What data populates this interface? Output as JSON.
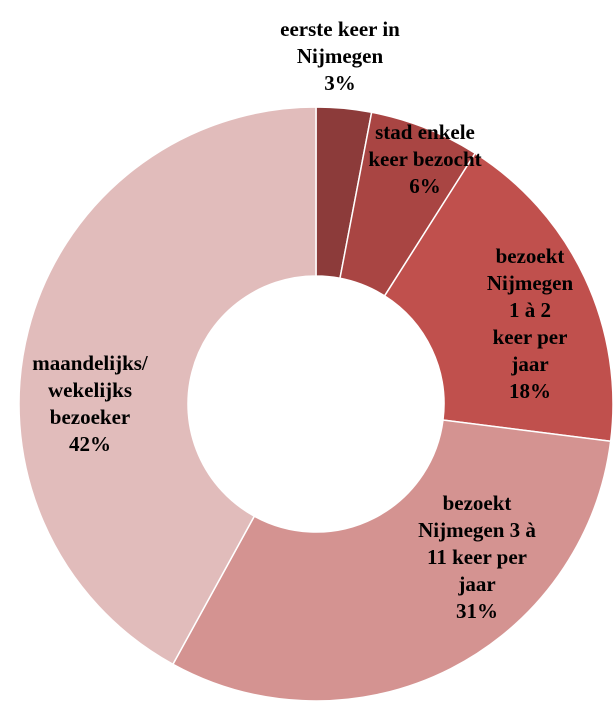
{
  "chart_data": {
    "type": "donut",
    "categories": [
      "eerste keer in\nNijmegen",
      "stad enkele\nkeer bezocht",
      "bezoekt\nNijmegen 1 à 2\nkeer per jaar",
      "bezoekt\nNijmegen 3 à\n11 keer per\njaar",
      "maandelijks/\nwekelijks\nbezoeker"
    ],
    "values": [
      3,
      6,
      18,
      31,
      42
    ],
    "value_labels": [
      "3%",
      "6%",
      "18%",
      "31%",
      "42%"
    ],
    "colors": [
      "#8c3b3a",
      "#a94543",
      "#c0504d",
      "#d49391",
      "#e1bcbb"
    ]
  }
}
